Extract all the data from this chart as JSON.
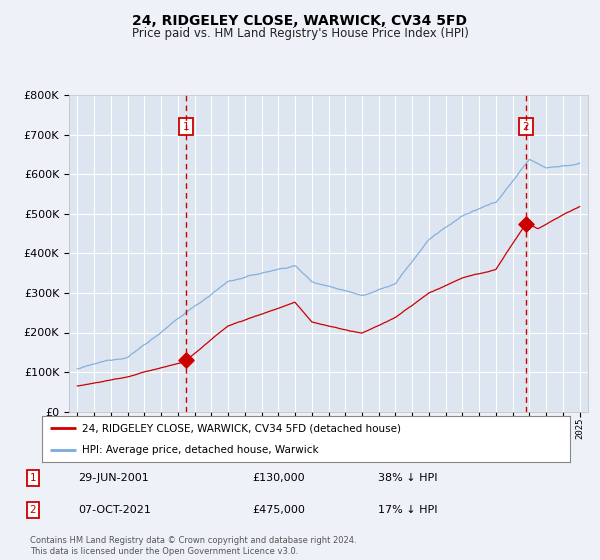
{
  "title": "24, RIDGELEY CLOSE, WARWICK, CV34 5FD",
  "subtitle": "Price paid vs. HM Land Registry's House Price Index (HPI)",
  "legend_line1": "24, RIDGELEY CLOSE, WARWICK, CV34 5FD (detached house)",
  "legend_line2": "HPI: Average price, detached house, Warwick",
  "footer": "Contains HM Land Registry data © Crown copyright and database right 2024.\nThis data is licensed under the Open Government Licence v3.0.",
  "purchase1_date": "29-JUN-2001",
  "purchase1_price": 130000,
  "purchase1_pct": "38% ↓ HPI",
  "purchase1_year": 2001.49,
  "purchase2_date": "07-OCT-2021",
  "purchase2_price": 475000,
  "purchase2_pct": "17% ↓ HPI",
  "purchase2_year": 2021.77,
  "ylim": [
    0,
    800000
  ],
  "xlim_start": 1994.5,
  "xlim_end": 2025.5,
  "background_color": "#eef2f8",
  "plot_bg_color": "#dde6f0",
  "grid_color": "#ffffff",
  "red_line_color": "#cc0000",
  "blue_line_color": "#7aaadd",
  "marker_box_color": "#cc0000",
  "dashed_line_color": "#cc0000"
}
